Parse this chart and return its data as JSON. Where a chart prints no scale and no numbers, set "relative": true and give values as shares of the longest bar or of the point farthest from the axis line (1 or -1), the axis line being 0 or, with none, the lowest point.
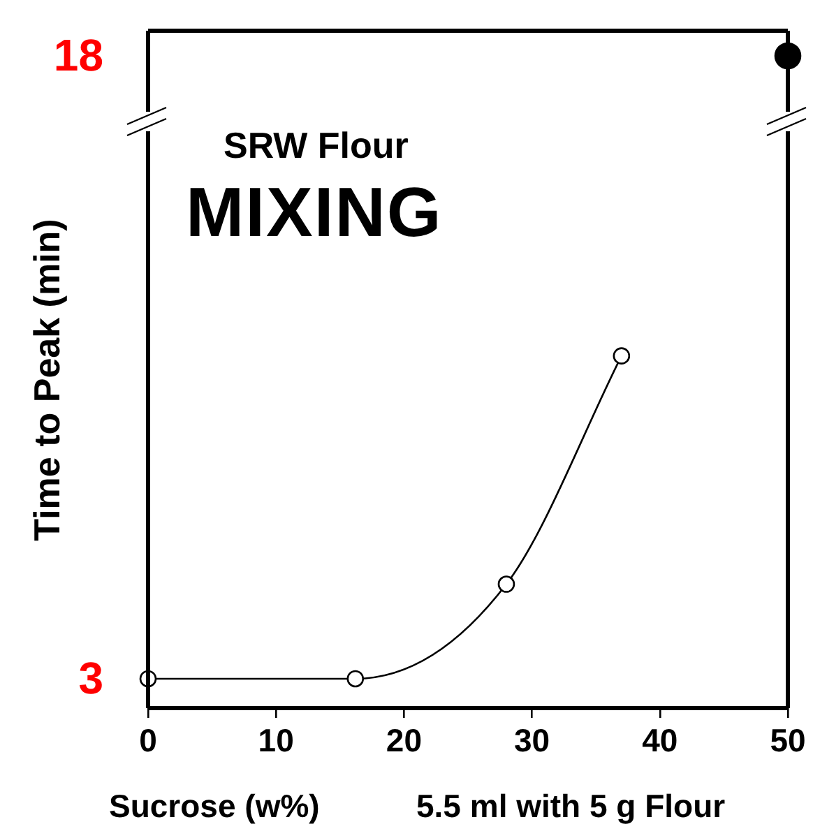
{
  "chart_data": {
    "type": "line",
    "relative": true,
    "title": "SRW Flour",
    "subtitle": "MIXING",
    "xlabel": "Sucrose (w%)",
    "ylabel": "Time to Peak (min)",
    "annotations": [
      "3",
      "18",
      "5.5 ml with 5 g Flour"
    ],
    "xlim": [
      0,
      50
    ],
    "xticks": [
      0,
      10,
      20,
      30,
      40,
      50
    ],
    "tick_labels": "x",
    "marker": "circle",
    "series": [
      {
        "color": "#000000",
        "x": [
          0,
          16.2,
          28,
          37
        ],
        "values": [
          0.045,
          0.045,
          0.19,
          0.54
        ]
      },
      {
        "type": "scatter",
        "color": "#000000",
        "x": [
          50
        ],
        "values": [
          1
        ]
      }
    ]
  }
}
